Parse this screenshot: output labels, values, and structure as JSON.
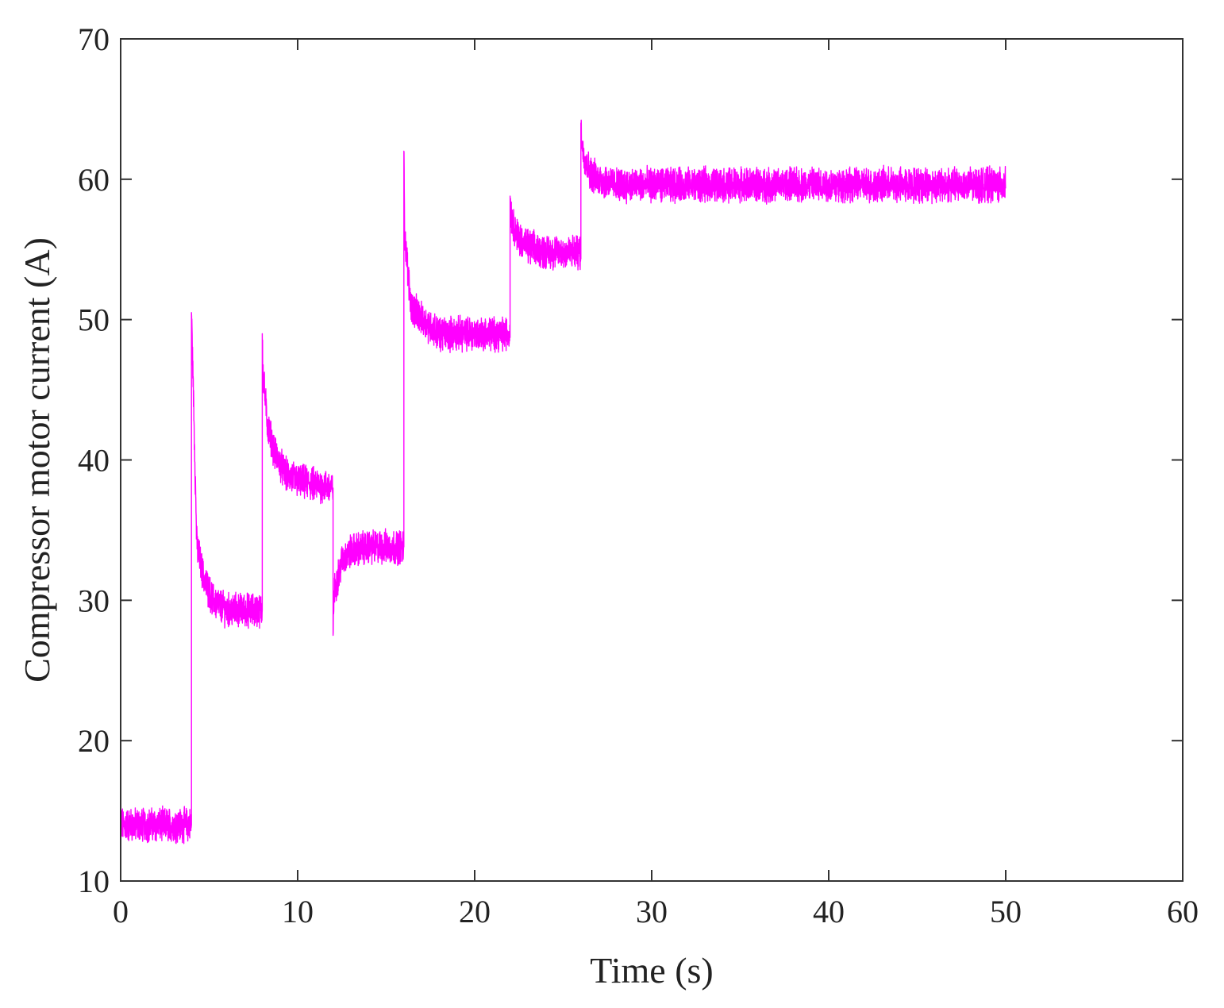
{
  "chart_data": {
    "type": "line",
    "title": "",
    "xlabel": "Time (s)",
    "ylabel": "Compressor motor current (A)",
    "xlim": [
      0,
      60
    ],
    "ylim": [
      10,
      70
    ],
    "xticks": [
      0,
      10,
      20,
      30,
      40,
      50,
      60
    ],
    "yticks": [
      10,
      20,
      30,
      40,
      50,
      60,
      70
    ],
    "grid": false,
    "legend": "none",
    "colors": {
      "line": "#ff00ff",
      "axis": "#333333"
    },
    "series": [
      {
        "noise_amplitude": 1.0,
        "x": [
          0,
          4.0,
          4.0,
          4.05,
          4.3,
          4.7,
          5.2,
          6.0,
          8.0,
          8.0,
          8.05,
          8.3,
          8.7,
          9.3,
          10.0,
          12.0,
          12.0,
          12.05,
          12.5,
          13.0,
          14.0,
          16.0,
          16.0,
          16.05,
          16.4,
          17.0,
          18.0,
          22.0,
          22.0,
          22.1,
          22.5,
          23.0,
          24.0,
          26.0,
          26.0,
          26.1,
          26.5,
          27.0,
          28.0,
          50.0
        ],
        "y": [
          14.0,
          14.0,
          50.5,
          48.0,
          34.0,
          31.5,
          30.0,
          29.3,
          29.3,
          49.0,
          46.0,
          42.5,
          40.5,
          39.0,
          38.5,
          38.0,
          27.5,
          30.5,
          32.8,
          33.5,
          33.8,
          33.8,
          62.0,
          56.0,
          51.0,
          50.0,
          49.0,
          49.0,
          58.8,
          57.0,
          55.8,
          55.2,
          54.8,
          54.8,
          64.0,
          62.0,
          60.5,
          60.0,
          59.6,
          59.6
        ]
      }
    ]
  }
}
